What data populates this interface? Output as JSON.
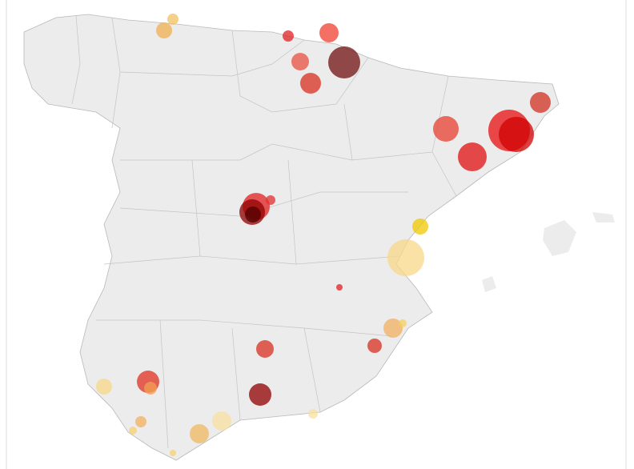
{
  "map": {
    "type": "bubble",
    "bubbles": [
      {
        "value": 49,
        "color": "#f0c060"
      },
      {
        "value": 100,
        "color": "#f0b050"
      },
      {
        "value": 49,
        "color": "#e02020"
      },
      {
        "value": 144,
        "color": "#f04030"
      },
      {
        "value": 121,
        "color": "#e85040"
      },
      {
        "value": 400,
        "color": "#701010"
      },
      {
        "value": 169,
        "color": "#d83020"
      },
      {
        "value": 169,
        "color": "#d03020"
      },
      {
        "value": 256,
        "color": "#e84030"
      },
      {
        "value": 676,
        "color": "#e81010"
      },
      {
        "value": 484,
        "color": "#d00000"
      },
      {
        "value": 324,
        "color": "#e01010"
      },
      {
        "value": 289,
        "color": "#e02020"
      },
      {
        "value": 256,
        "color": "#900000"
      },
      {
        "value": 100,
        "color": "#500000"
      },
      {
        "value": 36,
        "color": "#e03030"
      },
      {
        "value": 100,
        "color": "#f0c800"
      },
      {
        "value": 529,
        "color": "#f8d88a"
      },
      {
        "value": 16,
        "color": "#e02020"
      },
      {
        "value": 144,
        "color": "#f0b060"
      },
      {
        "value": 25,
        "color": "#f8d060"
      },
      {
        "value": 81,
        "color": "#d83020"
      },
      {
        "value": 121,
        "color": "#d83020"
      },
      {
        "value": 196,
        "color": "#e03020"
      },
      {
        "value": 64,
        "color": "#f0a050"
      },
      {
        "value": 100,
        "color": "#f8d88a"
      },
      {
        "value": 196,
        "color": "#900000"
      },
      {
        "value": 144,
        "color": "#f8e0a0"
      },
      {
        "value": 144,
        "color": "#f0b860"
      },
      {
        "value": 49,
        "color": "#f0b060"
      },
      {
        "value": 25,
        "color": "#f8d070"
      },
      {
        "value": 36,
        "color": "#f8e0a0"
      },
      {
        "value": 16,
        "color": "#f8d070"
      }
    ]
  }
}
